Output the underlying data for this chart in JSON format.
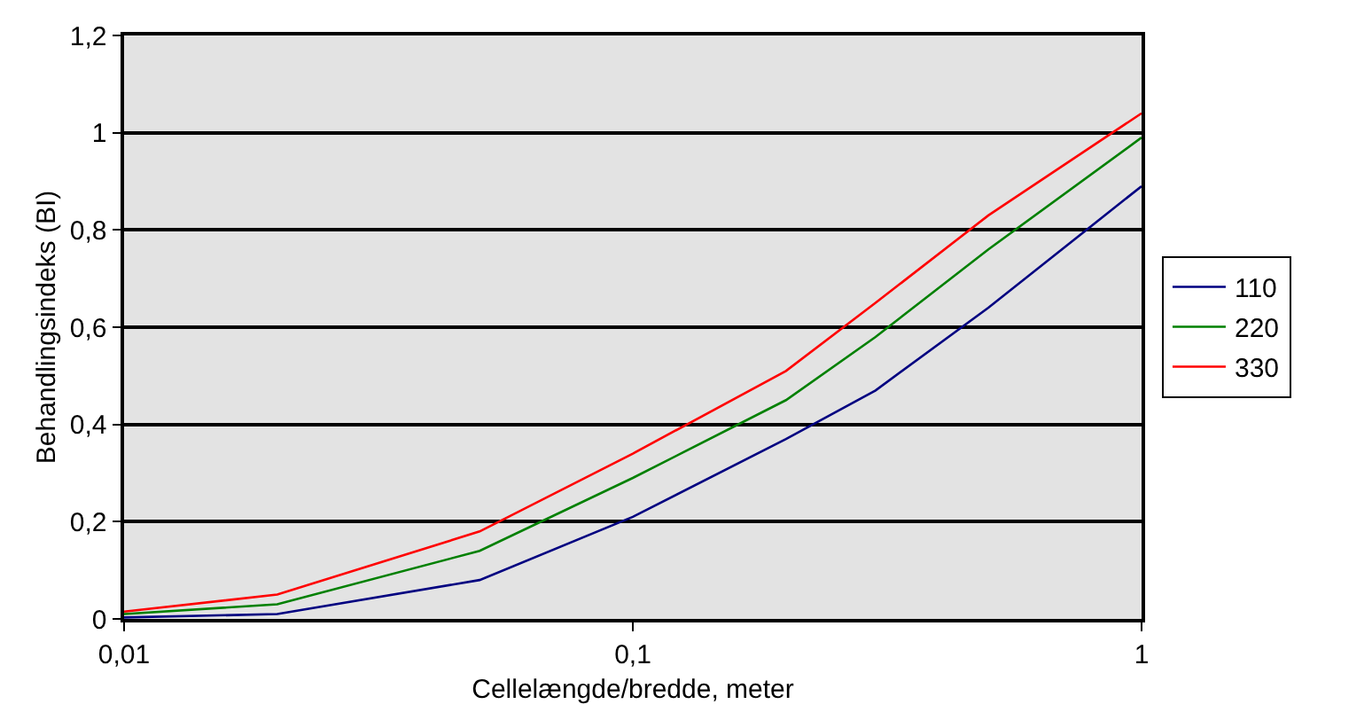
{
  "chart_data": {
    "type": "line",
    "xlabel": "Cellelængde/bredde, meter",
    "ylabel": "Behandlingsindeks (BI)",
    "log": "x",
    "x": [
      0.01,
      0.02,
      0.05,
      0.1,
      0.2,
      0.3,
      0.5,
      1
    ],
    "xlim": [
      0.01,
      1
    ],
    "xticks": [
      {
        "value": 0.01,
        "label": "0,01"
      },
      {
        "value": 0.1,
        "label": "0,1"
      },
      1
    ],
    "ylim": [
      0,
      1.2
    ],
    "yticks": [
      0,
      {
        "value": 0.2,
        "label": "0,2"
      },
      {
        "value": 0.4,
        "label": "0,4"
      },
      {
        "value": 0.6,
        "label": "0,6"
      },
      {
        "value": 0.8,
        "label": "0,8"
      },
      1,
      {
        "value": 1.2,
        "label": "1,2"
      }
    ],
    "grid": "y",
    "legend": "right",
    "marker": "none",
    "line_style": "solid",
    "series": [
      {
        "name": "110",
        "color": "#000080",
        "values": [
          0.003,
          0.01,
          0.08,
          0.21,
          0.37,
          0.47,
          0.64,
          0.89
        ]
      },
      {
        "name": "220",
        "color": "#008000",
        "values": [
          0.01,
          0.03,
          0.14,
          0.29,
          0.45,
          0.58,
          0.76,
          0.99
        ]
      },
      {
        "name": "330",
        "color": "#ff0000",
        "values": [
          0.015,
          0.05,
          0.18,
          0.34,
          0.51,
          0.65,
          0.83,
          1.04
        ]
      }
    ]
  }
}
